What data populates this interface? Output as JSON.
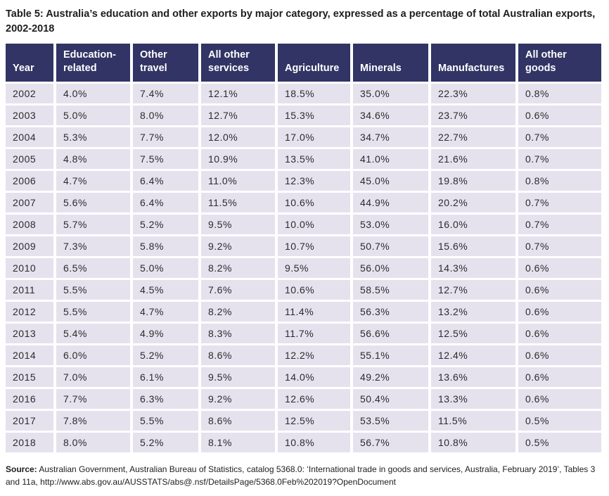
{
  "title": "Table 5: Australia’s education and other exports by major category, expressed as a percentage of total Australian exports, 2002-2018",
  "table": {
    "columns": [
      "Year",
      "Education-related",
      "Other travel",
      "All other services",
      "Agriculture",
      "Minerals",
      "Manufactures",
      "All other goods"
    ],
    "rows": [
      [
        "2002",
        "4.0%",
        "7.4%",
        "12.1%",
        "18.5%",
        "35.0%",
        "22.3%",
        "0.8%"
      ],
      [
        "2003",
        "5.0%",
        "8.0%",
        "12.7%",
        "15.3%",
        "34.6%",
        "23.7%",
        "0.6%"
      ],
      [
        "2004",
        "5.3%",
        "7.7%",
        "12.0%",
        "17.0%",
        "34.7%",
        "22.7%",
        "0.7%"
      ],
      [
        "2005",
        "4.8%",
        "7.5%",
        "10.9%",
        "13.5%",
        "41.0%",
        "21.6%",
        "0.7%"
      ],
      [
        "2006",
        "4.7%",
        "6.4%",
        "11.0%",
        "12.3%",
        "45.0%",
        "19.8%",
        "0.8%"
      ],
      [
        "2007",
        "5.6%",
        "6.4%",
        "11.5%",
        "10.6%",
        "44.9%",
        "20.2%",
        "0.7%"
      ],
      [
        "2008",
        "5.7%",
        "5.2%",
        "9.5%",
        "10.0%",
        "53.0%",
        "16.0%",
        "0.7%"
      ],
      [
        "2009",
        "7.3%",
        "5.8%",
        "9.2%",
        "10.7%",
        "50.7%",
        "15.6%",
        "0.7%"
      ],
      [
        "2010",
        "6.5%",
        "5.0%",
        "8.2%",
        "9.5%",
        "56.0%",
        "14.3%",
        "0.6%"
      ],
      [
        "2011",
        "5.5%",
        "4.5%",
        "7.6%",
        "10.6%",
        "58.5%",
        "12.7%",
        "0.6%"
      ],
      [
        "2012",
        "5.5%",
        "4.7%",
        "8.2%",
        "11.4%",
        "56.3%",
        "13.2%",
        "0.6%"
      ],
      [
        "2013",
        "5.4%",
        "4.9%",
        "8.3%",
        "11.7%",
        "56.6%",
        "12.5%",
        "0.6%"
      ],
      [
        "2014",
        "6.0%",
        "5.2%",
        "8.6%",
        "12.2%",
        "55.1%",
        "12.4%",
        "0.6%"
      ],
      [
        "2015",
        "7.0%",
        "6.1%",
        "9.5%",
        "14.0%",
        "49.2%",
        "13.6%",
        "0.6%"
      ],
      [
        "2016",
        "7.7%",
        "6.3%",
        "9.2%",
        "12.6%",
        "50.4%",
        "13.3%",
        "0.6%"
      ],
      [
        "2017",
        "7.8%",
        "5.5%",
        "8.6%",
        "12.5%",
        "53.5%",
        "11.5%",
        "0.5%"
      ],
      [
        "2018",
        "8.0%",
        "5.2%",
        "8.1%",
        "10.8%",
        "56.7%",
        "10.8%",
        "0.5%"
      ]
    ]
  },
  "source": {
    "label": "Source:",
    "text": " Australian Government, Australian Bureau of Statistics, catalog 5368.0: ‘International trade in goods and services, Australia, February 2019’, Tables 3 and 11a, http://www.abs.gov.au/AUSSTATS/abs@.nsf/DetailsPage/5368.0Feb%202019?OpenDocument"
  },
  "colors": {
    "header_bg": "#313464",
    "row_bg": "#e5e2ee",
    "header_text": "#ffffff",
    "body_text": "#2b2b2b"
  }
}
